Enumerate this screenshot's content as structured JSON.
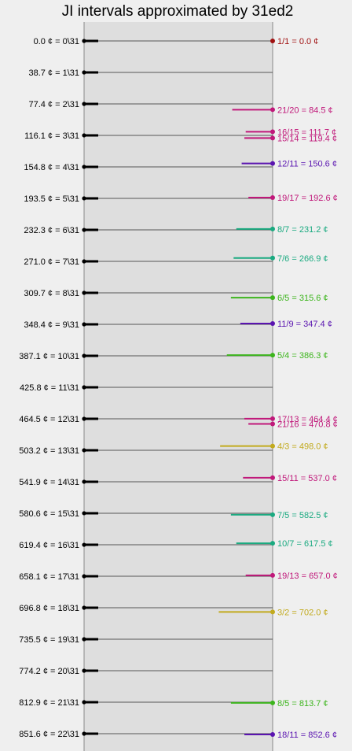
{
  "chart_data": {
    "type": "scatter",
    "title": "JI intervals approximated by 31ed2",
    "edo_steps": [
      {
        "cents": 0.0,
        "label": "0.0 ¢ = 0\\31"
      },
      {
        "cents": 38.7,
        "label": "38.7 ¢ = 1\\31"
      },
      {
        "cents": 77.4,
        "label": "77.4 ¢ = 2\\31"
      },
      {
        "cents": 116.1,
        "label": "116.1 ¢ = 3\\31"
      },
      {
        "cents": 154.8,
        "label": "154.8 ¢ = 4\\31"
      },
      {
        "cents": 193.5,
        "label": "193.5 ¢ = 5\\31"
      },
      {
        "cents": 232.3,
        "label": "232.3 ¢ = 6\\31"
      },
      {
        "cents": 271.0,
        "label": "271.0 ¢ = 7\\31"
      },
      {
        "cents": 309.7,
        "label": "309.7 ¢ = 8\\31"
      },
      {
        "cents": 348.4,
        "label": "348.4 ¢ = 9\\31"
      },
      {
        "cents": 387.1,
        "label": "387.1 ¢ = 10\\31"
      },
      {
        "cents": 425.8,
        "label": "425.8 ¢ = 11\\31"
      },
      {
        "cents": 464.5,
        "label": "464.5 ¢ = 12\\31"
      },
      {
        "cents": 503.2,
        "label": "503.2 ¢ = 13\\31"
      },
      {
        "cents": 541.9,
        "label": "541.9 ¢ = 14\\31"
      },
      {
        "cents": 580.6,
        "label": "580.6 ¢ = 15\\31"
      },
      {
        "cents": 619.4,
        "label": "619.4 ¢ = 16\\31"
      },
      {
        "cents": 658.1,
        "label": "658.1 ¢ = 17\\31"
      },
      {
        "cents": 696.8,
        "label": "696.8 ¢ = 18\\31"
      },
      {
        "cents": 735.5,
        "label": "735.5 ¢ = 19\\31"
      },
      {
        "cents": 774.2,
        "label": "774.2 ¢ = 20\\31"
      },
      {
        "cents": 812.9,
        "label": "812.9 ¢ = 21\\31"
      },
      {
        "cents": 851.6,
        "label": "851.6 ¢ = 22\\31"
      }
    ],
    "ji_intervals": [
      {
        "cents": 0.0,
        "label": "1/1 = 0.0 ¢",
        "color": "#a01010",
        "error": 0.0
      },
      {
        "cents": 84.5,
        "label": "21/20 = 84.5 ¢",
        "color": "#c0187a",
        "error": 3.0
      },
      {
        "cents": 111.7,
        "label": "16/15 = 111.7 ¢",
        "color": "#c0187a",
        "error": 2.0
      },
      {
        "cents": 119.4,
        "label": "15/14 = 119.4 ¢",
        "color": "#c0187a",
        "error": 2.1
      },
      {
        "cents": 150.6,
        "label": "12/11 = 150.6 ¢",
        "color": "#5a14b0",
        "error": 2.3
      },
      {
        "cents": 192.6,
        "label": "19/17 = 192.6 ¢",
        "color": "#c0187a",
        "error": 1.8
      },
      {
        "cents": 231.2,
        "label": "8/7 = 231.2 ¢",
        "color": "#1aaa80",
        "error": 2.7
      },
      {
        "cents": 266.9,
        "label": "7/6 = 266.9 ¢",
        "color": "#1aaa80",
        "error": 2.9
      },
      {
        "cents": 315.6,
        "label": "6/5 = 315.6 ¢",
        "color": "#3cb51c",
        "error": 3.1
      },
      {
        "cents": 347.4,
        "label": "11/9 = 347.4 ¢",
        "color": "#5a14b0",
        "error": 2.4
      },
      {
        "cents": 386.3,
        "label": "5/4 = 386.3 ¢",
        "color": "#3cb51c",
        "error": 3.4
      },
      {
        "cents": 464.4,
        "label": "17/13 = 464.4 ¢",
        "color": "#c0187a",
        "error": 2.1
      },
      {
        "cents": 470.8,
        "label": "21/16 = 470.8 ¢",
        "color": "#c0187a",
        "error": 1.8
      },
      {
        "cents": 498.0,
        "label": "4/3 = 498.0 ¢",
        "color": "#c2aa1e",
        "error": 3.9
      },
      {
        "cents": 537.0,
        "label": "15/11 = 537.0 ¢",
        "color": "#c0187a",
        "error": 2.2
      },
      {
        "cents": 582.5,
        "label": "7/5 = 582.5 ¢",
        "color": "#1aaa80",
        "error": 3.1
      },
      {
        "cents": 617.5,
        "label": "10/7 = 617.5 ¢",
        "color": "#1aaa80",
        "error": 2.7
      },
      {
        "cents": 657.0,
        "label": "19/13 = 657.0 ¢",
        "color": "#c0187a",
        "error": 2.0
      },
      {
        "cents": 702.0,
        "label": "3/2 = 702.0 ¢",
        "color": "#c2aa1e",
        "error": 4.0
      },
      {
        "cents": 813.7,
        "label": "8/5 = 813.7 ¢",
        "color": "#3cb51c",
        "error": 3.1
      },
      {
        "cents": 852.6,
        "label": "18/11 = 852.6 ¢",
        "color": "#5a14b0",
        "error": 2.1
      }
    ],
    "colors": {
      "background": "#efefef",
      "plot_area": "#dedede",
      "grid_line": "#555555",
      "axis": "#888888",
      "text": "#000000"
    }
  }
}
